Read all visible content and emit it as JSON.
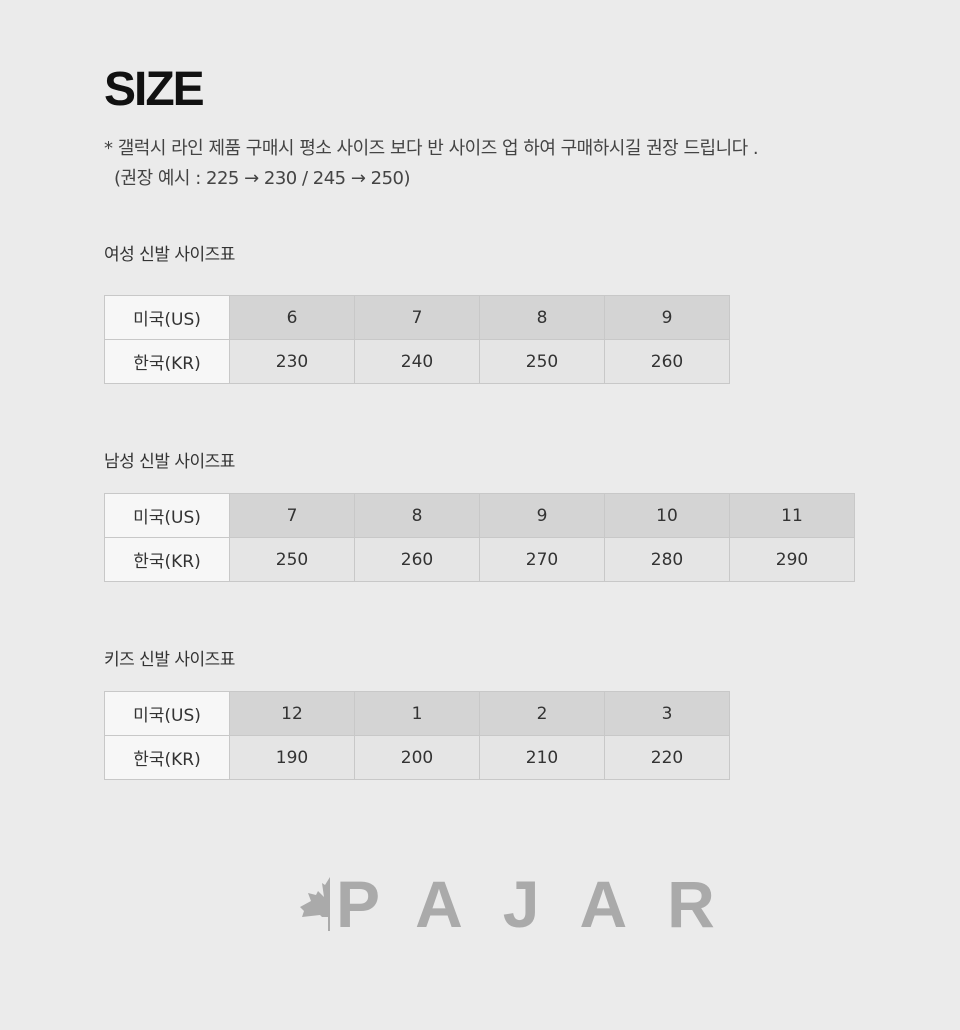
{
  "title": "SIZE",
  "note": {
    "line1": "* 갤럭시 라인 제품 구매시 평소 사이즈 보다 반 사이즈 업 하여 구매하시길 권장 드립니다 .",
    "line2": "(권장 예시 : 225 → 230 / 245 → 250)"
  },
  "tables": [
    {
      "heading": "여성 신발 사이즈표",
      "us_label": "미국(US)",
      "kr_label": "한국(KR)",
      "us": [
        "6",
        "7",
        "8",
        "9"
      ],
      "kr": [
        "230",
        "240",
        "250",
        "260"
      ]
    },
    {
      "heading": "남성 신발 사이즈표",
      "us_label": "미국(US)",
      "kr_label": "한국(KR)",
      "us": [
        "7",
        "8",
        "9",
        "10",
        "11"
      ],
      "kr": [
        "250",
        "260",
        "270",
        "280",
        "290"
      ]
    },
    {
      "heading": "키즈 신발 사이즈표",
      "us_label": "미국(US)",
      "kr_label": "한국(KR)",
      "us": [
        "12",
        "1",
        "2",
        "3"
      ],
      "kr": [
        "190",
        "200",
        "210",
        "220"
      ]
    }
  ],
  "logo": {
    "text": "PAJAR",
    "icon": "maple-leaf-half-icon",
    "color": "#aaaaaa"
  }
}
